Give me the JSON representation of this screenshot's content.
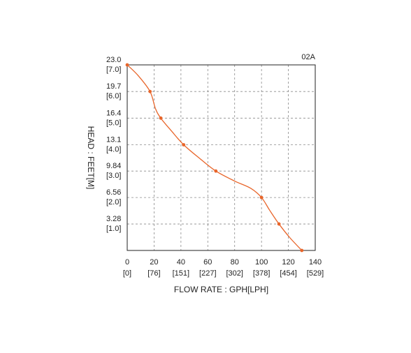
{
  "chart_data": {
    "type": "line",
    "xlabel": "FLOW RATE : GPH[LPH]",
    "ylabel": "HEAD : FEET[M]",
    "xlim": [
      0,
      140
    ],
    "ylim": [
      0,
      23.0
    ],
    "x_ticks": [
      {
        "value": 0,
        "label": "0",
        "sublabel": "[0]"
      },
      {
        "value": 20,
        "label": "20",
        "sublabel": "[76]"
      },
      {
        "value": 40,
        "label": "40",
        "sublabel": "[151]"
      },
      {
        "value": 60,
        "label": "60",
        "sublabel": "[227]"
      },
      {
        "value": 80,
        "label": "80",
        "sublabel": "[302]"
      },
      {
        "value": 100,
        "label": "100",
        "sublabel": "[378]"
      },
      {
        "value": 120,
        "label": "120",
        "sublabel": "[454]"
      },
      {
        "value": 140,
        "label": "140",
        "sublabel": "[529]"
      }
    ],
    "y_ticks": [
      {
        "value": 23.0,
        "label": "23.0",
        "sublabel": "[7.0]"
      },
      {
        "value": 19.7,
        "label": "19.7",
        "sublabel": "[6.0]"
      },
      {
        "value": 16.4,
        "label": "16.4",
        "sublabel": "[5.0]"
      },
      {
        "value": 13.1,
        "label": "13.1",
        "sublabel": "[4.0]"
      },
      {
        "value": 9.84,
        "label": "9.84",
        "sublabel": "[3.0]"
      },
      {
        "value": 6.56,
        "label": "6.56",
        "sublabel": "[2.0]"
      },
      {
        "value": 3.28,
        "label": "3.28",
        "sublabel": "[1.0]"
      }
    ],
    "grid": true,
    "series": [
      {
        "name": "02A",
        "color": "#e8652a",
        "points": [
          {
            "x": 0,
            "y": 23.0
          },
          {
            "x": 17,
            "y": 19.7
          },
          {
            "x": 25,
            "y": 16.4
          },
          {
            "x": 42,
            "y": 13.1
          },
          {
            "x": 66,
            "y": 9.84
          },
          {
            "x": 100,
            "y": 6.56
          },
          {
            "x": 113,
            "y": 3.28
          },
          {
            "x": 130,
            "y": 0
          }
        ],
        "curve_points": [
          {
            "x": 0,
            "y": 23.0
          },
          {
            "x": 8,
            "y": 21.7
          },
          {
            "x": 17,
            "y": 19.7
          },
          {
            "x": 21,
            "y": 17.6
          },
          {
            "x": 25,
            "y": 16.4
          },
          {
            "x": 33,
            "y": 14.8
          },
          {
            "x": 42,
            "y": 13.1
          },
          {
            "x": 54,
            "y": 11.4
          },
          {
            "x": 66,
            "y": 9.84
          },
          {
            "x": 80,
            "y": 8.6
          },
          {
            "x": 92,
            "y": 7.7
          },
          {
            "x": 100,
            "y": 6.56
          },
          {
            "x": 106,
            "y": 5.0
          },
          {
            "x": 113,
            "y": 3.28
          },
          {
            "x": 121,
            "y": 1.6
          },
          {
            "x": 130,
            "y": 0
          }
        ]
      }
    ]
  }
}
